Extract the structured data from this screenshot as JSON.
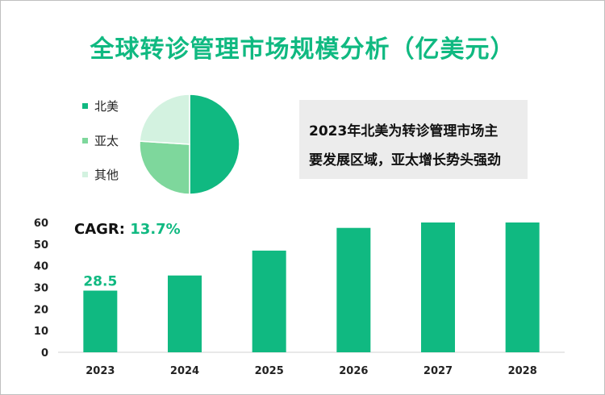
{
  "title": "全球转诊管理市场规模分析（亿美元）",
  "note": {
    "line1": "2023年北美为转诊管理市场主",
    "line2": "要发展区域，亚太增长势头强劲"
  },
  "cagr": {
    "label": "CAGR:",
    "value": "13.7%"
  },
  "pie_legend": [
    {
      "label": "北美",
      "color": "#10b981"
    },
    {
      "label": "亚太",
      "color": "#7ed79c"
    },
    {
      "label": "其他",
      "color": "#d3f2e0"
    }
  ],
  "chart_data": [
    {
      "type": "bar",
      "categories": [
        "2023",
        "2024",
        "2025",
        "2026",
        "2027",
        "2028"
      ],
      "values": [
        28.5,
        35.5,
        47,
        57.5,
        60,
        60
      ],
      "data_labels": {
        "2023": "28.5"
      },
      "ylim": [
        0,
        60
      ],
      "yticks": [
        0,
        10,
        20,
        30,
        40,
        50,
        60
      ],
      "bar_color": "#10b981",
      "grid": false
    },
    {
      "type": "pie",
      "labels": [
        "北美",
        "亚太",
        "其他"
      ],
      "values": [
        50,
        26,
        24
      ],
      "colors": [
        "#10b981",
        "#7ed79c",
        "#d3f2e0"
      ]
    }
  ]
}
